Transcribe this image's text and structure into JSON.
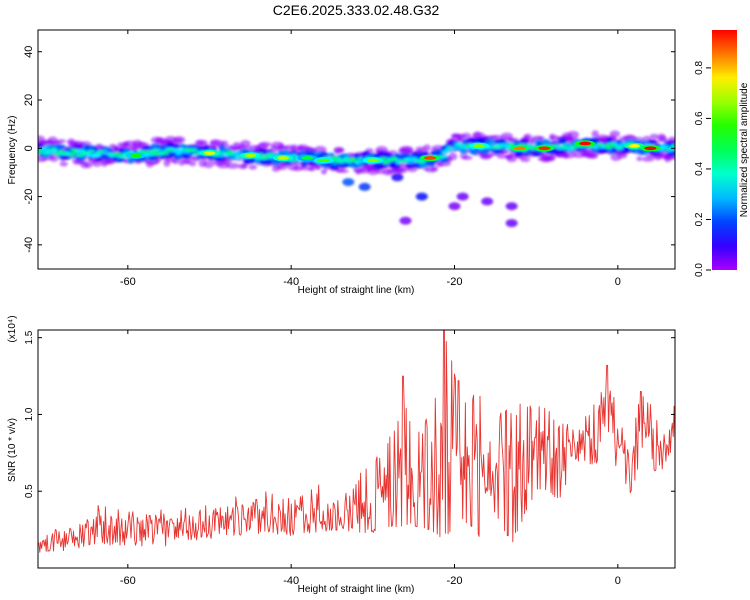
{
  "title": "C2E6.2025.333.02.48.G32",
  "chart_data": [
    {
      "type": "heatmap",
      "name": "spectrogram",
      "xlabel": "Height of straight line (km)",
      "ylabel": "Frequency (Hz)",
      "xlim": [
        -71,
        7
      ],
      "ylim": [
        -50,
        49
      ],
      "xticks": [
        -60,
        -40,
        -20,
        0
      ],
      "yticks": [
        40,
        20,
        0,
        -20,
        -40
      ],
      "colorbar": {
        "label": "Normalized spectral amplitude",
        "range": [
          0,
          0.95
        ],
        "ticks": [
          0.0,
          0.2,
          0.4,
          0.6,
          0.8
        ],
        "tick_labels": [
          "0.0",
          "0.2",
          "0.4",
          "0.6",
          "0.8"
        ]
      },
      "ridge": {
        "x": [
          -71,
          -65,
          -60,
          -55,
          -50,
          -45,
          -40,
          -35,
          -30,
          -25,
          -22,
          -20,
          -15,
          -10,
          -5,
          0,
          7
        ],
        "freq": [
          -1,
          -2,
          -3,
          -1,
          -2,
          -3,
          -4,
          -5,
          -5,
          -5,
          -4,
          1,
          1,
          0,
          1,
          1,
          0
        ]
      },
      "hotspots": [
        {
          "x": -59,
          "freq": -3,
          "amp": 0.55
        },
        {
          "x": -50,
          "freq": -2,
          "amp": 0.72
        },
        {
          "x": -45,
          "freq": -3,
          "amp": 0.68
        },
        {
          "x": -41,
          "freq": -4,
          "amp": 0.7
        },
        {
          "x": -38,
          "freq": -4,
          "amp": 0.5
        },
        {
          "x": -36,
          "freq": -5,
          "amp": 0.6
        },
        {
          "x": -30,
          "freq": -5,
          "amp": 0.65
        },
        {
          "x": -23,
          "freq": -4,
          "amp": 0.9
        },
        {
          "x": -17,
          "freq": 1,
          "amp": 0.65
        },
        {
          "x": -12,
          "freq": 0,
          "amp": 0.85
        },
        {
          "x": -9,
          "freq": 0,
          "amp": 0.92
        },
        {
          "x": -4,
          "freq": 2,
          "amp": 0.95
        },
        {
          "x": 2,
          "freq": 1,
          "amp": 0.75
        },
        {
          "x": 4,
          "freq": 0,
          "amp": 0.95
        }
      ],
      "scatter_blobs": [
        {
          "x": -33,
          "freq": -14,
          "amp": 0.2
        },
        {
          "x": -31,
          "freq": -16,
          "amp": 0.18
        },
        {
          "x": -27,
          "freq": -12,
          "amp": 0.12
        },
        {
          "x": -24,
          "freq": -20,
          "amp": 0.15
        },
        {
          "x": -19,
          "freq": -20,
          "amp": 0.05
        },
        {
          "x": -16,
          "freq": -22,
          "amp": 0.05
        },
        {
          "x": -13,
          "freq": -24,
          "amp": 0.05
        },
        {
          "x": -13,
          "freq": -31,
          "amp": 0.05
        },
        {
          "x": -20,
          "freq": -24,
          "amp": 0.04
        },
        {
          "x": -26,
          "freq": -30,
          "amp": 0.04
        }
      ]
    },
    {
      "type": "line",
      "name": "snr",
      "xlabel": "Height of straight line (km)",
      "ylabel": "SNR (10 * v/v)",
      "y_multiplier": "(x10⁴)",
      "xlim": [
        -71,
        7
      ],
      "ylim": [
        0,
        1.55
      ],
      "xticks": [
        -60,
        -40,
        -20,
        0
      ],
      "yticks": [
        0.5,
        1.0,
        1.5
      ],
      "ytick_labels": [
        "0.5",
        "1.0",
        "1.5"
      ],
      "color": "#e8332f",
      "envelope": {
        "x": [
          -71,
          -66,
          -64,
          -60,
          -55,
          -52,
          -48,
          -45,
          -42,
          -40,
          -37,
          -34,
          -31,
          -28,
          -26,
          -24,
          -22,
          -21,
          -19,
          -17,
          -15,
          -13,
          -10,
          -7,
          -5,
          -3,
          -1,
          1,
          3,
          5,
          7
        ],
        "base": [
          0.1,
          0.12,
          0.15,
          0.14,
          0.14,
          0.18,
          0.2,
          0.22,
          0.22,
          0.2,
          0.22,
          0.25,
          0.22,
          0.25,
          0.28,
          0.25,
          0.2,
          0.2,
          0.3,
          0.2,
          0.35,
          0.15,
          0.5,
          0.45,
          0.7,
          0.65,
          0.8,
          0.4,
          0.7,
          0.6,
          0.8
        ],
        "peak": [
          0.22,
          0.3,
          0.44,
          0.38,
          0.38,
          0.42,
          0.44,
          0.5,
          0.5,
          0.45,
          0.55,
          0.5,
          0.65,
          0.85,
          1.05,
          0.9,
          1.2,
          1.55,
          1.1,
          1.2,
          1.0,
          1.05,
          1.12,
          0.95,
          0.95,
          1.1,
          1.32,
          0.8,
          1.15,
          1.0,
          1.08
        ]
      },
      "highlights": [
        {
          "x": -21.3,
          "y": 1.55
        },
        {
          "x": -26.3,
          "y": 1.25
        },
        {
          "x": -19.5,
          "y": 1.22
        },
        {
          "x": -1.3,
          "y": 1.32
        },
        {
          "x": 2.8,
          "y": 1.15
        }
      ]
    }
  ]
}
